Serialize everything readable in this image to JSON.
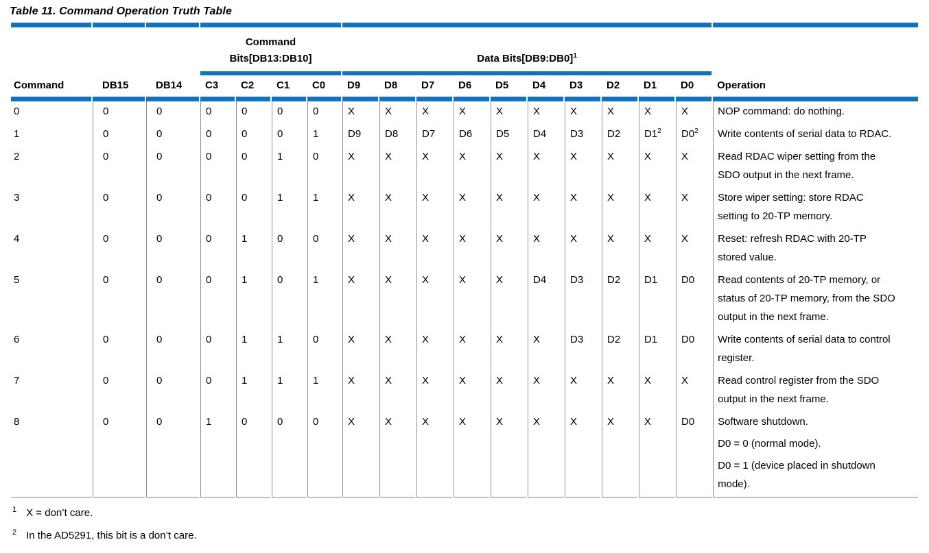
{
  "page": {
    "title": "Table 11. Command Operation Truth Table"
  },
  "colors": {
    "accent_blue": "#1172bd",
    "grid_gray": "#8f8f8f",
    "bottom_rule_gray": "#7d7d7d"
  },
  "table": {
    "groups": {
      "command_bits": {
        "label_line1": "Command",
        "label_line2": "Bits[DB13:DB10]"
      },
      "data_bits": {
        "label": "Data Bits[DB9:DB0]",
        "footnote_ref": "1"
      }
    },
    "columns": [
      "Command",
      "DB15",
      "DB14",
      "C3",
      "C2",
      "C1",
      "C0",
      "D9",
      "D8",
      "D7",
      "D6",
      "D5",
      "D4",
      "D3",
      "D2",
      "D1",
      "D0",
      "Operation"
    ],
    "rows": [
      {
        "command": "0",
        "bits": [
          "0",
          "0",
          "0",
          "0",
          "0",
          "0",
          "X",
          "X",
          "X",
          "X",
          "X",
          "X",
          "X",
          "X",
          "X",
          "X"
        ],
        "operation": [
          "NOP command: do nothing."
        ]
      },
      {
        "command": "1",
        "bits": [
          "0",
          "0",
          "0",
          "0",
          "0",
          "1",
          "D9",
          "D8",
          "D7",
          "D6",
          "D5",
          "D4",
          "D3",
          "D2",
          {
            "text": "D1",
            "sup": "2"
          },
          {
            "text": "D0",
            "sup": "2"
          }
        ],
        "operation": [
          "Write contents of serial data to RDAC."
        ]
      },
      {
        "command": "2",
        "bits": [
          "0",
          "0",
          "0",
          "0",
          "1",
          "0",
          "X",
          "X",
          "X",
          "X",
          "X",
          "X",
          "X",
          "X",
          "X",
          "X"
        ],
        "operation": [
          "Read RDAC wiper setting from the\nSDO output in the next frame."
        ]
      },
      {
        "command": "3",
        "bits": [
          "0",
          "0",
          "0",
          "0",
          "1",
          "1",
          "X",
          "X",
          "X",
          "X",
          "X",
          "X",
          "X",
          "X",
          "X",
          "X"
        ],
        "operation": [
          "Store wiper setting: store RDAC\nsetting to 20-TP memory."
        ]
      },
      {
        "command": "4",
        "bits": [
          "0",
          "0",
          "0",
          "1",
          "0",
          "0",
          "X",
          "X",
          "X",
          "X",
          "X",
          "X",
          "X",
          "X",
          "X",
          "X"
        ],
        "operation": [
          "Reset: refresh RDAC with 20-TP\nstored value."
        ]
      },
      {
        "command": "5",
        "bits": [
          "0",
          "0",
          "0",
          "1",
          "0",
          "1",
          "X",
          "X",
          "X",
          "X",
          "X",
          "D4",
          "D3",
          "D2",
          "D1",
          "D0"
        ],
        "operation": [
          "Read contents of 20-TP memory, or\nstatus of 20-TP memory, from the SDO\noutput in the next frame."
        ]
      },
      {
        "command": "6",
        "bits": [
          "0",
          "0",
          "0",
          "1",
          "1",
          "0",
          "X",
          "X",
          "X",
          "X",
          "X",
          "X",
          "D3",
          "D2",
          "D1",
          "D0"
        ],
        "operation": [
          "Write contents of serial data to control\nregister."
        ]
      },
      {
        "command": "7",
        "bits": [
          "0",
          "0",
          "0",
          "1",
          "1",
          "1",
          "X",
          "X",
          "X",
          "X",
          "X",
          "X",
          "X",
          "X",
          "X",
          "X"
        ],
        "operation": [
          "Read control register from the SDO\noutput in the next frame."
        ]
      },
      {
        "command": "8",
        "bits": [
          "0",
          "0",
          "1",
          "0",
          "0",
          "0",
          "X",
          "X",
          "X",
          "X",
          "X",
          "X",
          "X",
          "X",
          "X",
          "D0"
        ],
        "operation": [
          "Software shutdown.",
          "D0 = 0 (normal mode).",
          "D0 = 1 (device placed in shutdown\nmode)."
        ]
      }
    ]
  },
  "footnotes": [
    {
      "marker": "1",
      "text": "X = don’t care."
    },
    {
      "marker": "2",
      "text": "In the AD5291, this bit is a don’t care."
    }
  ]
}
